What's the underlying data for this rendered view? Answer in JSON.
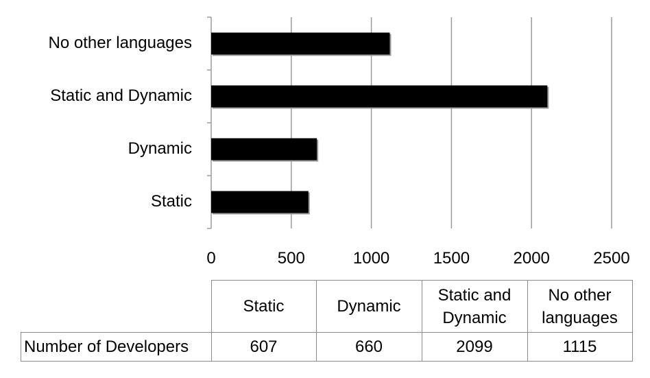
{
  "chart_data": {
    "type": "bar",
    "orientation": "horizontal",
    "categories": [
      "Static",
      "Dynamic",
      "Static and Dynamic",
      "No other languages"
    ],
    "series": [
      {
        "name": "Number of Developers",
        "values": [
          607,
          660,
          2099,
          1115
        ]
      }
    ],
    "xlim": [
      0,
      2500
    ],
    "x_ticks": [
      "0",
      "500",
      "1000",
      "1500",
      "2000",
      "2500"
    ],
    "grid": true,
    "colors": {
      "bar": "#000000",
      "grid": "#9a9a9a"
    }
  },
  "table": {
    "row_header": "Number of Developers",
    "headers": [
      [
        "Static"
      ],
      [
        "Dynamic"
      ],
      [
        "Static and",
        "Dynamic"
      ],
      [
        "No other",
        "languages"
      ]
    ],
    "values": [
      "607",
      "660",
      "2099",
      "1115"
    ]
  }
}
